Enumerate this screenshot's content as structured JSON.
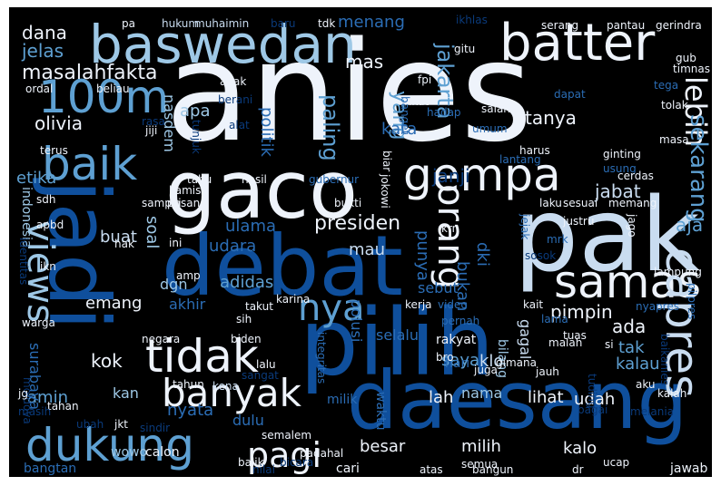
{
  "palette": {
    "white": "#eef3fb",
    "pale": "#c9dcf0",
    "light": "#9ec8e6",
    "mid": "#5ea0d2",
    "blue": "#2b6db5",
    "deep": "#0f4f9c",
    "dark": "#0a3a7a",
    "background": "#000000"
  },
  "words": [
    {
      "t": "anies",
      "c": "white"
    },
    {
      "t": "pak",
      "c": "pale"
    },
    {
      "t": "pilih",
      "c": "deep"
    },
    {
      "t": "debat",
      "c": "deep"
    },
    {
      "t": "daesang",
      "c": "deep"
    },
    {
      "t": "gaco",
      "c": "white"
    },
    {
      "t": "jadi",
      "c": "deep"
    },
    {
      "t": "baswedan",
      "c": "light"
    },
    {
      "t": "batter",
      "c": "white"
    },
    {
      "t": "100m",
      "c": "mid"
    },
    {
      "t": "baik",
      "c": "mid"
    },
    {
      "t": "gempa",
      "c": "white"
    },
    {
      "t": "samas",
      "c": "white"
    },
    {
      "t": "capres",
      "c": "pale"
    },
    {
      "t": "tidak",
      "c": "white"
    },
    {
      "t": "dukung",
      "c": "mid"
    },
    {
      "t": "banyak",
      "c": "white"
    },
    {
      "t": "orang",
      "c": "white"
    },
    {
      "t": "views",
      "c": "light"
    },
    {
      "t": "pagi",
      "c": "white"
    },
    {
      "t": "nya",
      "c": "mid"
    },
    {
      "t": "presiden",
      "c": "white"
    },
    {
      "t": "lebih",
      "c": "white"
    },
    {
      "t": "jakarta",
      "c": "mid"
    },
    {
      "t": "yang",
      "c": "mid"
    },
    {
      "t": "paling",
      "c": "mid"
    },
    {
      "t": "masalahfakta",
      "c": "white"
    },
    {
      "t": "olivia",
      "c": "white"
    },
    {
      "t": "tanya",
      "c": "white"
    },
    {
      "t": "janji",
      "c": "dark"
    },
    {
      "t": "sekarang",
      "c": "mid"
    },
    {
      "t": "jabat",
      "c": "pale"
    },
    {
      "t": "aja",
      "c": "mid"
    },
    {
      "t": "dana",
      "c": "white"
    },
    {
      "t": "jelas",
      "c": "mid"
    },
    {
      "t": "mas",
      "c": "white"
    },
    {
      "t": "menang",
      "c": "blue"
    },
    {
      "t": "apa",
      "c": "light"
    },
    {
      "t": "politik",
      "c": "blue"
    },
    {
      "t": "kata",
      "c": "blue"
    },
    {
      "t": "etika",
      "c": "mid"
    },
    {
      "t": "indonesia",
      "c": "light"
    },
    {
      "t": "nasdem",
      "c": "light"
    },
    {
      "t": "ulama",
      "c": "blue"
    },
    {
      "t": "soal",
      "c": "light"
    },
    {
      "t": "buat",
      "c": "pale"
    },
    {
      "t": "udara",
      "c": "blue"
    },
    {
      "t": "mau",
      "c": "pale"
    },
    {
      "t": "punya",
      "c": "blue"
    },
    {
      "t": "bukan",
      "c": "blue"
    },
    {
      "t": "dki",
      "c": "blue"
    },
    {
      "t": "emang",
      "c": "white"
    },
    {
      "t": "adidas",
      "c": "mid"
    },
    {
      "t": "dgn",
      "c": "light"
    },
    {
      "t": "akhir",
      "c": "blue"
    },
    {
      "t": "sebut",
      "c": "blue"
    },
    {
      "t": "polusi",
      "c": "blue"
    },
    {
      "t": "selalu",
      "c": "blue"
    },
    {
      "t": "pimpin",
      "c": "white"
    },
    {
      "t": "ada",
      "c": "white"
    },
    {
      "t": "tak",
      "c": "mid"
    },
    {
      "t": "kalau",
      "c": "mid"
    },
    {
      "t": "kok",
      "c": "white"
    },
    {
      "t": "gagal",
      "c": "pale"
    },
    {
      "t": "amin",
      "c": "mid"
    },
    {
      "t": "kan",
      "c": "light"
    },
    {
      "t": "nyata",
      "c": "blue"
    },
    {
      "t": "dulu",
      "c": "blue"
    },
    {
      "t": "surabaya",
      "c": "blue"
    },
    {
      "t": "saya",
      "c": "mid"
    },
    {
      "t": "klo",
      "c": "pale"
    },
    {
      "t": "lah",
      "c": "white"
    },
    {
      "t": "nama",
      "c": "light"
    },
    {
      "t": "lihat",
      "c": "white"
    },
    {
      "t": "udah",
      "c": "white"
    },
    {
      "t": "waktu",
      "c": "blue"
    },
    {
      "t": "besar",
      "c": "white"
    },
    {
      "t": "milih",
      "c": "white"
    },
    {
      "t": "kalo",
      "c": "white"
    },
    {
      "t": "wowo",
      "c": "light"
    },
    {
      "t": "calon",
      "c": "white"
    },
    {
      "t": "bangtan",
      "c": "blue"
    },
    {
      "t": "cari",
      "c": "white"
    },
    {
      "t": "jawab",
      "c": "white"
    },
    {
      "t": "bilang",
      "c": "light"
    },
    {
      "t": "rakyat",
      "c": "white"
    },
    {
      "t": "hari",
      "c": "blue"
    },
    {
      "t": "milik",
      "c": "blue"
    },
    {
      "t": "integritas",
      "c": "blue"
    },
    {
      "t": "sangat",
      "c": "dark"
    },
    {
      "t": "kena",
      "c": "pale"
    },
    {
      "t": "tahun",
      "c": "white"
    },
    {
      "t": "tahan",
      "c": "white"
    },
    {
      "t": "pa",
      "c": "white"
    },
    {
      "t": "hukum",
      "c": "pale"
    },
    {
      "t": "muhaimin",
      "c": "pale"
    },
    {
      "t": "baru",
      "c": "dark"
    },
    {
      "t": "tdk",
      "c": "white"
    },
    {
      "t": "ikhlas",
      "c": "dark"
    },
    {
      "t": "serang",
      "c": "white"
    },
    {
      "t": "pantau",
      "c": "white"
    },
    {
      "t": "gerindra",
      "c": "white"
    },
    {
      "t": "gitu",
      "c": "white"
    },
    {
      "t": "fpi",
      "c": "white"
    },
    {
      "t": "ikut",
      "c": "white"
    },
    {
      "t": "salah",
      "c": "white"
    },
    {
      "t": "anak",
      "c": "white"
    },
    {
      "t": "berani",
      "c": "dark"
    },
    {
      "t": "beliau",
      "c": "white"
    },
    {
      "t": "ordal",
      "c": "white"
    },
    {
      "t": "tunjuk",
      "c": "dark"
    },
    {
      "t": "jiji",
      "c": "white"
    },
    {
      "t": "rasa",
      "c": "dark"
    },
    {
      "t": "alat",
      "c": "dark"
    },
    {
      "t": "terus",
      "c": "white"
    },
    {
      "t": "dapat",
      "c": "blue"
    },
    {
      "t": "tega",
      "c": "blue"
    },
    {
      "t": "tolak",
      "c": "white"
    },
    {
      "t": "gub",
      "c": "white"
    },
    {
      "t": "timnas",
      "c": "white"
    },
    {
      "t": "ginting",
      "c": "white"
    },
    {
      "t": "masa",
      "c": "white"
    },
    {
      "t": "harus",
      "c": "white"
    },
    {
      "t": "usung",
      "c": "blue"
    },
    {
      "t": "lantang",
      "c": "blue"
    },
    {
      "t": "umum",
      "c": "blue"
    },
    {
      "t": "hadap",
      "c": "blue"
    },
    {
      "t": "banget",
      "c": "blue"
    },
    {
      "t": "biar",
      "c": "white"
    },
    {
      "t": "jokowi",
      "c": "white"
    },
    {
      "t": "gubernur",
      "c": "blue"
    },
    {
      "t": "bukti",
      "c": "white"
    },
    {
      "t": "hasil",
      "c": "white"
    },
    {
      "t": "tahu",
      "c": "white"
    },
    {
      "t": "kamis",
      "c": "white"
    },
    {
      "t": "pasang",
      "c": "white"
    },
    {
      "t": "sampai",
      "c": "white"
    },
    {
      "t": "sdh",
      "c": "white"
    },
    {
      "t": "apbd",
      "c": "white"
    },
    {
      "t": "hak",
      "c": "white"
    },
    {
      "t": "ini",
      "c": "white"
    },
    {
      "t": "takut",
      "c": "white"
    },
    {
      "t": "karina",
      "c": "white"
    },
    {
      "t": "kerja",
      "c": "white"
    },
    {
      "t": "krn",
      "c": "white"
    },
    {
      "t": "laku",
      "c": "white"
    },
    {
      "t": "sesuai",
      "c": "white"
    },
    {
      "t": "memang",
      "c": "white"
    },
    {
      "t": "jago",
      "c": "white"
    },
    {
      "t": "cerdas",
      "c": "white"
    },
    {
      "t": "jejak",
      "c": "blue"
    },
    {
      "t": "mrk",
      "c": "blue"
    },
    {
      "t": "justru",
      "c": "white"
    },
    {
      "t": "sosok",
      "c": "dark"
    },
    {
      "t": "lampung",
      "c": "white"
    },
    {
      "t": "nyapres",
      "c": "blue"
    },
    {
      "t": "pilpres",
      "c": "blue"
    },
    {
      "t": "identitas",
      "c": "dark"
    },
    {
      "t": "ikn",
      "c": "white"
    },
    {
      "t": "amp",
      "c": "white"
    },
    {
      "t": "sih",
      "c": "white"
    },
    {
      "t": "video",
      "c": "blue"
    },
    {
      "t": "pernah",
      "c": "blue"
    },
    {
      "t": "kait",
      "c": "white"
    },
    {
      "t": "lama",
      "c": "blue"
    },
    {
      "t": "tuas",
      "c": "white"
    },
    {
      "t": "warga",
      "c": "white"
    },
    {
      "t": "negara",
      "c": "white"
    },
    {
      "t": "biden",
      "c": "white"
    },
    {
      "t": "lalu",
      "c": "white"
    },
    {
      "t": "bro",
      "c": "white"
    },
    {
      "t": "gimana",
      "c": "white"
    },
    {
      "t": "malah",
      "c": "white"
    },
    {
      "t": "si",
      "c": "white"
    },
    {
      "t": "baikanies",
      "c": "dark"
    },
    {
      "t": "juga",
      "c": "white"
    },
    {
      "t": "moldova",
      "c": "dark"
    },
    {
      "t": "jauh",
      "c": "white"
    },
    {
      "t": "aku",
      "c": "white"
    },
    {
      "t": "kalah",
      "c": "white"
    },
    {
      "t": "jg",
      "c": "white"
    },
    {
      "t": "masih",
      "c": "dark"
    },
    {
      "t": "ubah",
      "c": "dark"
    },
    {
      "t": "jkt",
      "c": "white"
    },
    {
      "t": "tuding",
      "c": "dark"
    },
    {
      "t": "bagai",
      "c": "dark"
    },
    {
      "t": "melania",
      "c": "dark"
    },
    {
      "t": "sindir",
      "c": "dark"
    },
    {
      "t": "semalem",
      "c": "white"
    },
    {
      "t": "padahal",
      "c": "white"
    },
    {
      "t": "semua",
      "c": "white"
    },
    {
      "t": "bicara",
      "c": "dark"
    },
    {
      "t": "balik",
      "c": "white"
    },
    {
      "t": "nilai",
      "c": "dark"
    },
    {
      "t": "atas",
      "c": "white"
    },
    {
      "t": "dr",
      "c": "white"
    },
    {
      "t": "ucap",
      "c": "white"
    },
    {
      "t": "bangun",
      "c": "white"
    }
  ]
}
